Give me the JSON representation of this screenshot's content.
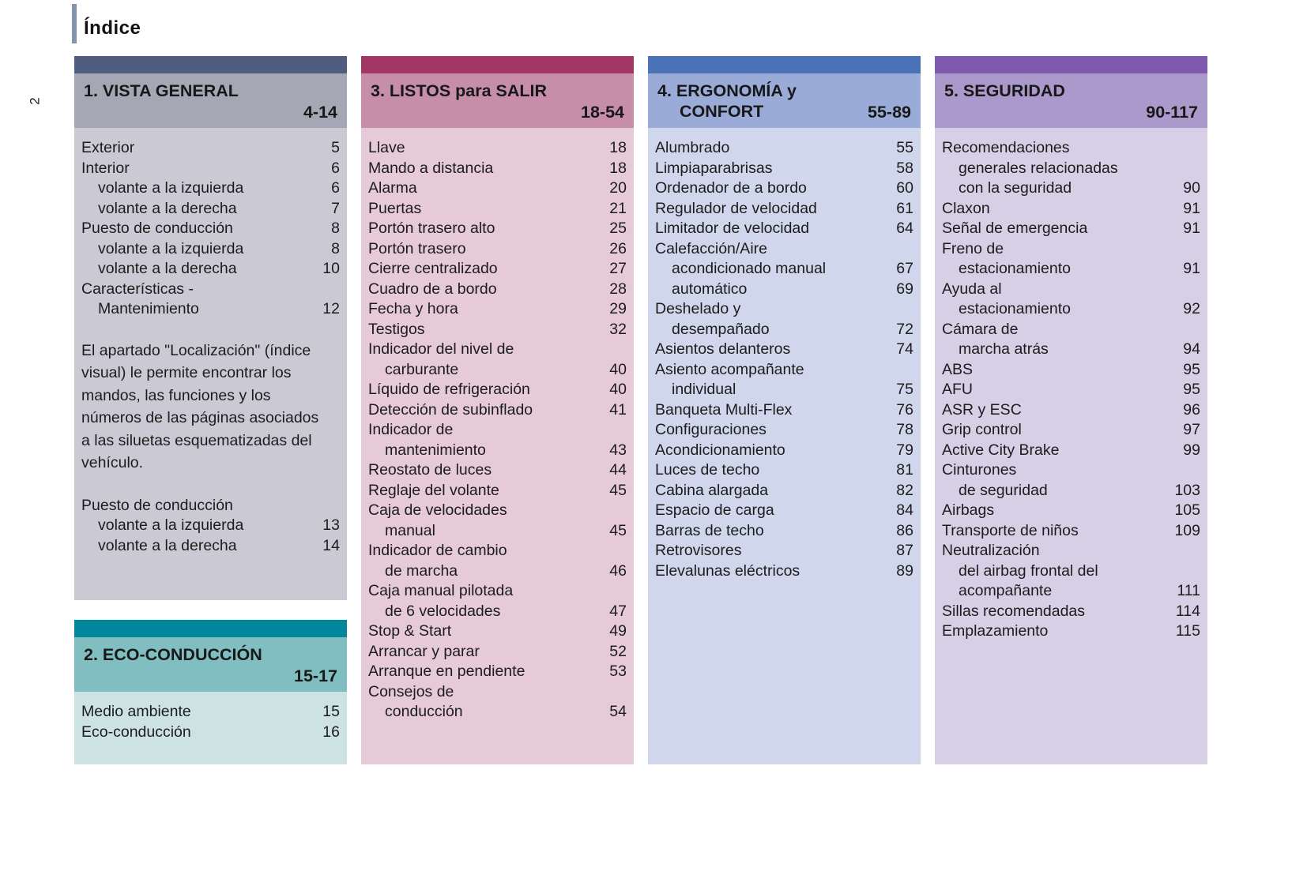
{
  "page": {
    "title": "Índice",
    "side_page_number": "2",
    "accent_bar_color": "#8294ae",
    "text_color": "#1c1c1c",
    "background": "#ffffff"
  },
  "sections": {
    "vista": {
      "title_line1": "1. VISTA GENERAL",
      "title_line2": "",
      "range": "4-14",
      "colors": {
        "bar": "#4f5d7f",
        "header": "#a6a7b5",
        "body": "#cbcad4"
      },
      "rows": [
        {
          "t": "Exterior",
          "p": "5"
        },
        {
          "t": "Interior",
          "p": "6"
        },
        {
          "t": "volante a la izquierda",
          "p": "6",
          "i": 1
        },
        {
          "t": "volante a la derecha",
          "p": "7",
          "i": 1
        },
        {
          "t": "Puesto de conducción",
          "p": "8"
        },
        {
          "t": "volante a la izquierda",
          "p": "8",
          "i": 1
        },
        {
          "t": "volante a la derecha",
          "p": "10",
          "i": 1
        },
        {
          "t": "Características -",
          "p": ""
        },
        {
          "t": "Mantenimiento",
          "p": "12",
          "i": 1
        }
      ],
      "paragraph": "El apartado \"Localización\" (índice visual) le permite encontrar los mandos, las funciones y los números de las páginas asociados a las siluetas esquematizadas del vehículo.",
      "rows2": [
        {
          "t": "Puesto de conducción",
          "p": ""
        },
        {
          "t": "volante a la izquierda",
          "p": "13",
          "i": 1
        },
        {
          "t": "volante a la derecha",
          "p": "14",
          "i": 1
        }
      ]
    },
    "eco": {
      "title_line1": "2. ECO-CONDUCCIÓN",
      "title_line2": "",
      "range": "15-17",
      "colors": {
        "bar": "#00879b",
        "header": "#80bec2",
        "body": "#cde3e3"
      },
      "rows": [
        {
          "t": "Medio ambiente",
          "p": "15"
        },
        {
          "t": "Eco-conducción",
          "p": "16"
        }
      ]
    },
    "listos": {
      "title_line1": "3. LISTOS para SALIR",
      "title_line2": "",
      "range": "18-54",
      "colors": {
        "bar": "#a23766",
        "header": "#c78ea9",
        "body": "#e6cad8"
      },
      "rows": [
        {
          "t": "Llave",
          "p": "18"
        },
        {
          "t": "Mando a distancia",
          "p": "18"
        },
        {
          "t": "Alarma",
          "p": "20"
        },
        {
          "t": "Puertas",
          "p": "21"
        },
        {
          "t": "Portón trasero alto",
          "p": "25"
        },
        {
          "t": "Portón trasero",
          "p": "26"
        },
        {
          "t": "Cierre centralizado",
          "p": "27"
        },
        {
          "t": "Cuadro de a bordo",
          "p": "28"
        },
        {
          "t": "Fecha y hora",
          "p": "29"
        },
        {
          "t": "Testigos",
          "p": "32"
        },
        {
          "t": "Indicador del nivel de",
          "p": ""
        },
        {
          "t": "carburante",
          "p": "40",
          "i": 1
        },
        {
          "t": "Líquido de refrigeración",
          "p": "40"
        },
        {
          "t": "Detección de subinflado",
          "p": "41"
        },
        {
          "t": "Indicador de",
          "p": ""
        },
        {
          "t": "mantenimiento",
          "p": "43",
          "i": 1
        },
        {
          "t": "Reostato de luces",
          "p": "44"
        },
        {
          "t": "Reglaje del volante",
          "p": "45"
        },
        {
          "t": "Caja de velocidades",
          "p": ""
        },
        {
          "t": "manual",
          "p": "45",
          "i": 1
        },
        {
          "t": "Indicador de cambio",
          "p": ""
        },
        {
          "t": "de marcha",
          "p": "46",
          "i": 1
        },
        {
          "t": "Caja manual pilotada",
          "p": ""
        },
        {
          "t": "de 6 velocidades",
          "p": "47",
          "i": 1
        },
        {
          "t": "Stop & Start",
          "p": "49"
        },
        {
          "t": "Arrancar y parar",
          "p": "52"
        },
        {
          "t": "Arranque en pendiente",
          "p": "53"
        },
        {
          "t": "Consejos de",
          "p": ""
        },
        {
          "t": "conducción",
          "p": "54",
          "i": 1
        }
      ]
    },
    "ergonomia": {
      "title_line1": "4. ERGONOMÍA y",
      "title_line2": "CONFORT",
      "range": "55-89",
      "colors": {
        "bar": "#4a72b6",
        "header": "#9aabd8",
        "body": "#d0d7ed"
      },
      "rows": [
        {
          "t": "Alumbrado",
          "p": "55"
        },
        {
          "t": "Limpiaparabrisas",
          "p": "58"
        },
        {
          "t": "Ordenador de a bordo",
          "p": "60"
        },
        {
          "t": "Regulador de velocidad",
          "p": "61"
        },
        {
          "t": "Limitador de velocidad",
          "p": "64"
        },
        {
          "t": "Calefacción/Aire",
          "p": ""
        },
        {
          "t": "acondicionado manual",
          "p": "67",
          "i": 1
        },
        {
          "t": "automático",
          "p": "69",
          "i": 1
        },
        {
          "t": "Deshelado y",
          "p": ""
        },
        {
          "t": "desempañado",
          "p": "72",
          "i": 1
        },
        {
          "t": "Asientos delanteros",
          "p": "74"
        },
        {
          "t": "Asiento acompañante",
          "p": ""
        },
        {
          "t": "individual",
          "p": "75",
          "i": 1
        },
        {
          "t": "Banqueta Multi-Flex",
          "p": "76"
        },
        {
          "t": "Configuraciones",
          "p": "78"
        },
        {
          "t": "Acondicionamiento",
          "p": "79"
        },
        {
          "t": "Luces de techo",
          "p": "81"
        },
        {
          "t": "Cabina alargada",
          "p": "82"
        },
        {
          "t": "Espacio de carga",
          "p": "84"
        },
        {
          "t": "Barras de techo",
          "p": "86"
        },
        {
          "t": "Retrovisores",
          "p": "87"
        },
        {
          "t": "Elevalunas eléctricos",
          "p": "89"
        }
      ]
    },
    "seguridad": {
      "title_line1": "5. SEGURIDAD",
      "title_line2": "",
      "range": "90-117",
      "colors": {
        "bar": "#7e59ad",
        "header": "#ac99cc",
        "body": "#d7cfe6"
      },
      "rows": [
        {
          "t": "Recomendaciones",
          "p": ""
        },
        {
          "t": "generales relacionadas",
          "p": "",
          "i": 1
        },
        {
          "t": "con la seguridad",
          "p": "90",
          "i": 1
        },
        {
          "t": "Claxon",
          "p": "91"
        },
        {
          "t": "Señal de emergencia",
          "p": "91"
        },
        {
          "t": "Freno de",
          "p": ""
        },
        {
          "t": "estacionamiento",
          "p": "91",
          "i": 1
        },
        {
          "t": "Ayuda al",
          "p": ""
        },
        {
          "t": "estacionamiento",
          "p": "92",
          "i": 1
        },
        {
          "t": "Cámara de",
          "p": ""
        },
        {
          "t": "marcha atrás",
          "p": "94",
          "i": 1
        },
        {
          "t": "ABS",
          "p": "95"
        },
        {
          "t": "AFU",
          "p": "95"
        },
        {
          "t": "ASR y ESC",
          "p": "96"
        },
        {
          "t": "Grip control",
          "p": "97"
        },
        {
          "t": "Active City Brake",
          "p": "99"
        },
        {
          "t": "Cinturones",
          "p": ""
        },
        {
          "t": "de seguridad",
          "p": "103",
          "i": 1
        },
        {
          "t": "Airbags",
          "p": "105"
        },
        {
          "t": "Transporte de niños",
          "p": "109"
        },
        {
          "t": "Neutralización",
          "p": ""
        },
        {
          "t": "del airbag frontal del",
          "p": "",
          "i": 1
        },
        {
          "t": "acompañante",
          "p": "111",
          "i": 1
        },
        {
          "t": "Sillas recomendadas",
          "p": "114"
        },
        {
          "t": "Emplazamiento",
          "p": "115"
        }
      ]
    }
  }
}
